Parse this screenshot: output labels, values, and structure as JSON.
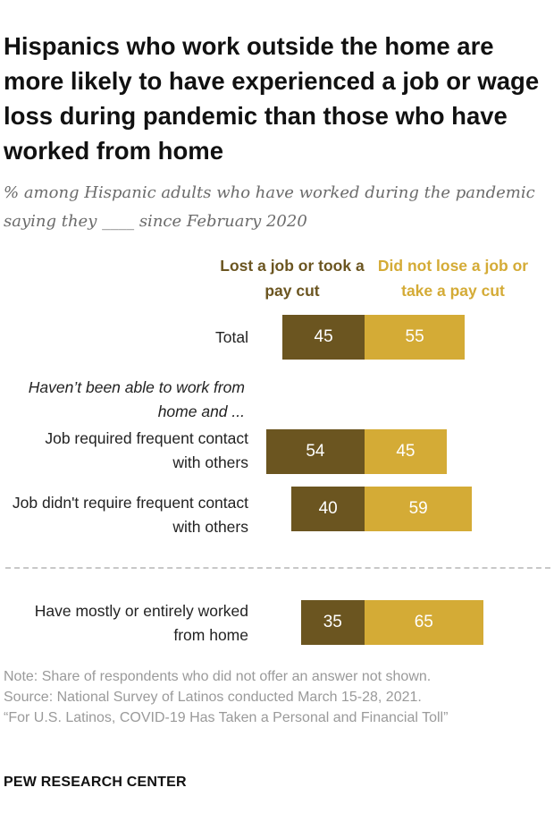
{
  "title": "Hispanics who work outside the home are more likely to have experienced a job or wage loss during pandemic than those who have worked from home",
  "subtitle": "% among Hispanic adults who have worked during the pandemic saying they ____ since February 2020",
  "colors": {
    "lost": "#6b5520",
    "not_lost": "#d4ab36"
  },
  "chart_data": {
    "type": "bar",
    "stacked": true,
    "orientation": "horizontal",
    "legend": [
      "Lost a job or took a pay cut",
      "Did not lose a job or take a pay cut"
    ],
    "group_label": "Haven’t been able to work from home and ...",
    "categories": [
      "Total",
      "Job required frequent contact with others",
      "Job didn't require frequent contact with others",
      "Have mostly or entirely worked from home"
    ],
    "series": [
      {
        "name": "Lost a job or took a pay cut",
        "values": [
          45,
          54,
          40,
          35
        ]
      },
      {
        "name": "Did not lose a job or take a pay cut",
        "values": [
          55,
          45,
          59,
          65
        ]
      }
    ]
  },
  "notes": [
    "Note: Share of respondents who did not offer an answer not shown.",
    "Source: National Survey of Latinos conducted March 15-28, 2021.",
    "“For U.S. Latinos, COVID-19 Has Taken a Personal and Financial Toll”"
  ],
  "source_org": "PEW RESEARCH CENTER"
}
